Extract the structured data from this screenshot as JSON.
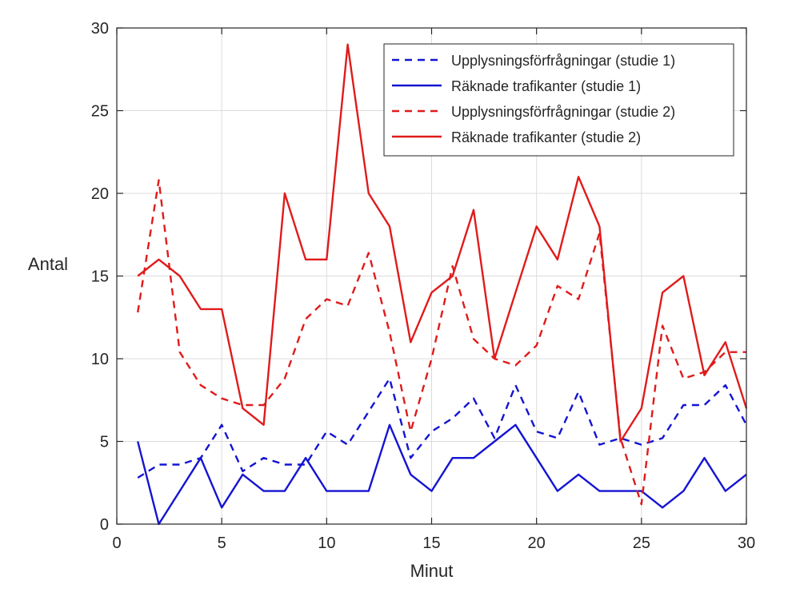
{
  "chart_data": {
    "type": "line",
    "xlabel": "Minut",
    "ylabel": "Antal",
    "xlim": [
      0,
      30
    ],
    "ylim": [
      0,
      30
    ],
    "xticks": [
      0,
      5,
      10,
      15,
      20,
      25,
      30
    ],
    "yticks": [
      0,
      5,
      10,
      15,
      20,
      25,
      30
    ],
    "grid": true,
    "legend_position": "top-right",
    "x": [
      1,
      2,
      3,
      4,
      5,
      6,
      7,
      8,
      9,
      10,
      11,
      12,
      13,
      14,
      15,
      16,
      17,
      18,
      19,
      20,
      21,
      22,
      23,
      24,
      25,
      26,
      27,
      28,
      29,
      30
    ],
    "series": [
      {
        "name": "Upplysningsförfrågningar (studie 1)",
        "color": "#1414d2",
        "style": "dashed",
        "values": [
          2.8,
          3.6,
          3.6,
          4.0,
          6.0,
          3.2,
          4.0,
          3.6,
          3.6,
          5.6,
          4.8,
          6.8,
          8.8,
          4.0,
          5.6,
          6.4,
          7.6,
          5.2,
          8.4,
          5.6,
          5.2,
          8.0,
          4.8,
          5.2,
          4.8,
          5.2,
          7.2,
          7.2,
          8.4,
          6.0
        ]
      },
      {
        "name": "Räknade trafikanter (studie 1)",
        "color": "#1414d2",
        "style": "solid",
        "values": [
          5,
          0,
          2,
          4,
          1,
          3,
          2,
          2,
          4,
          2,
          2,
          2,
          6,
          3,
          2,
          4,
          4,
          5,
          6,
          4,
          2,
          3,
          2,
          2,
          2,
          1,
          2,
          4,
          2,
          3
        ]
      },
      {
        "name": "Upplysningsförfrågningar (studie 2)",
        "color": "#e01b1b",
        "style": "dashed",
        "values": [
          12.8,
          20.8,
          10.4,
          8.4,
          7.6,
          7.2,
          7.2,
          8.8,
          12.4,
          13.6,
          13.2,
          16.4,
          11.6,
          5.6,
          10.0,
          15.6,
          11.2,
          10.0,
          9.6,
          10.8,
          14.4,
          13.6,
          17.6,
          5.2,
          1.2,
          12.0,
          8.8,
          9.2,
          10.4,
          10.4
        ]
      },
      {
        "name": "Räknade trafikanter (studie 2)",
        "color": "#e01b1b",
        "style": "solid",
        "values": [
          15,
          16,
          15,
          13,
          13,
          7,
          6,
          20,
          16,
          16,
          29,
          20,
          18,
          11,
          14,
          15,
          19,
          10,
          14,
          18,
          16,
          21,
          18,
          5,
          7,
          14,
          15,
          9,
          11,
          7
        ]
      }
    ]
  }
}
